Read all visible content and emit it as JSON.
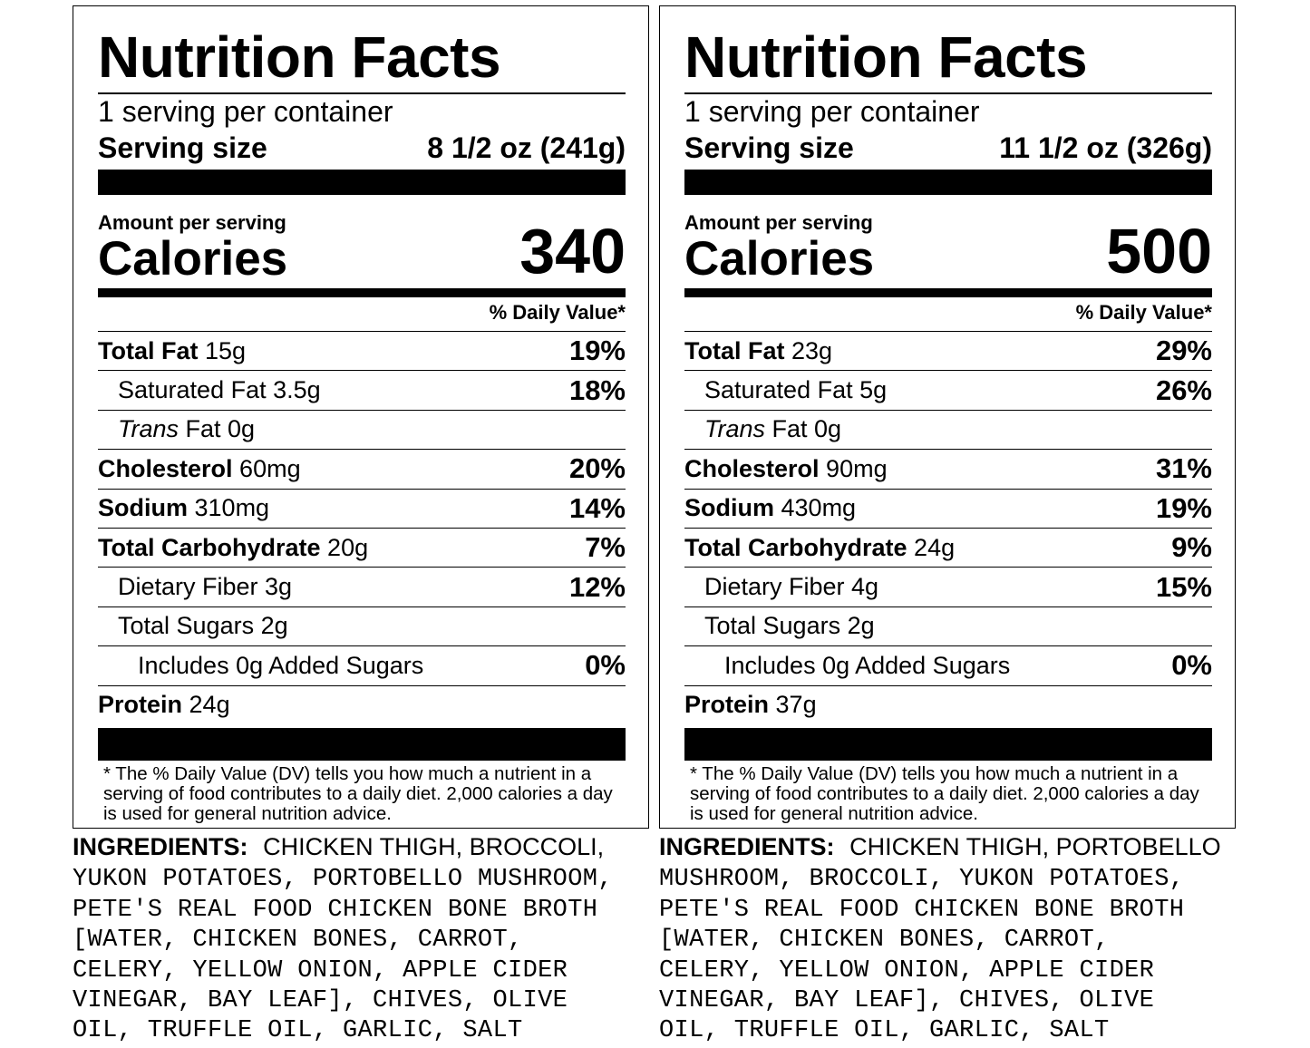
{
  "labels": [
    {
      "title": "Nutrition Facts",
      "servings": "1 serving per container",
      "serving_size_label": "Serving size",
      "serving_size_value": "8 1/2 oz (241g)",
      "amount_per_serving": "Amount per serving",
      "calories_label": "Calories",
      "calories_value": "340",
      "dv_header": "% Daily Value*",
      "rows": [
        {
          "bold": "Total Fat",
          "value": "15g",
          "pct": "19%"
        },
        {
          "bold": "",
          "value": "Saturated Fat 3.5g",
          "pct": "18%"
        },
        {
          "italic": "Trans",
          "value": "Fat 0g",
          "pct": ""
        },
        {
          "bold": "Cholesterol",
          "value": "60mg",
          "pct": "20%"
        },
        {
          "bold": "Sodium",
          "value": "310mg",
          "pct": "14%"
        },
        {
          "bold": "Total Carbohydrate",
          "value": "20g",
          "pct": "7%"
        },
        {
          "bold": "",
          "value": "Dietary Fiber 3g",
          "pct": "12%"
        },
        {
          "bold": "",
          "value": "Total Sugars 2g",
          "pct": ""
        },
        {
          "bold": "",
          "value": "Includes 0g Added Sugars",
          "pct": "0%"
        },
        {
          "bold": "Protein",
          "value": "24g",
          "pct": ""
        }
      ],
      "footnote": "* The % Daily Value (DV) tells you how much a nutrient in a serving of food contributes to a daily diet. 2,000 calories a day is used for general nutrition advice.",
      "ingredients_heading": "INGREDIENTS:",
      "ingredients_lines": [
        "CHICKEN THIGH, BROCCOLI,",
        "YUKON POTATOES, PORTOBELLO MUSHROOM,",
        "PETE'S REAL FOOD CHICKEN BONE BROTH",
        "[WATER, CHICKEN BONES, CARROT,",
        "CELERY, YELLOW ONION, APPLE CIDER",
        "VINEGAR, BAY LEAF], CHIVES, OLIVE",
        "OIL, TRUFFLE OIL, GARLIC, SALT"
      ]
    },
    {
      "title": "Nutrition Facts",
      "servings": "1 serving per container",
      "serving_size_label": "Serving size",
      "serving_size_value": "11 1/2 oz (326g)",
      "amount_per_serving": "Amount per serving",
      "calories_label": "Calories",
      "calories_value": "500",
      "dv_header": "% Daily Value*",
      "rows": [
        {
          "bold": "Total Fat",
          "value": "23g",
          "pct": "29%"
        },
        {
          "bold": "",
          "value": "Saturated Fat 5g",
          "pct": "26%"
        },
        {
          "italic": "Trans",
          "value": "Fat 0g",
          "pct": ""
        },
        {
          "bold": "Cholesterol",
          "value": "90mg",
          "pct": "31%"
        },
        {
          "bold": "Sodium",
          "value": "430mg",
          "pct": "19%"
        },
        {
          "bold": "Total Carbohydrate",
          "value": "24g",
          "pct": "9%"
        },
        {
          "bold": "",
          "value": "Dietary Fiber 4g",
          "pct": "15%"
        },
        {
          "bold": "",
          "value": "Total Sugars 2g",
          "pct": ""
        },
        {
          "bold": "",
          "value": "Includes 0g Added Sugars",
          "pct": "0%"
        },
        {
          "bold": "Protein",
          "value": "37g",
          "pct": ""
        }
      ],
      "footnote": "* The % Daily Value (DV) tells you how much a nutrient in a serving of food contributes to a daily diet. 2,000 calories a day is used for general nutrition advice.",
      "ingredients_heading": "INGREDIENTS:",
      "ingredients_lines": [
        "CHICKEN THIGH, PORTOBELLO",
        "MUSHROOM, BROCCOLI, YUKON POTATOES,",
        "PETE'S REAL FOOD CHICKEN BONE BROTH",
        "[WATER, CHICKEN BONES, CARROT,",
        "CELERY, YELLOW ONION, APPLE CIDER",
        "VINEGAR, BAY LEAF], CHIVES, OLIVE",
        "OIL, TRUFFLE OIL, GARLIC, SALT"
      ]
    }
  ]
}
